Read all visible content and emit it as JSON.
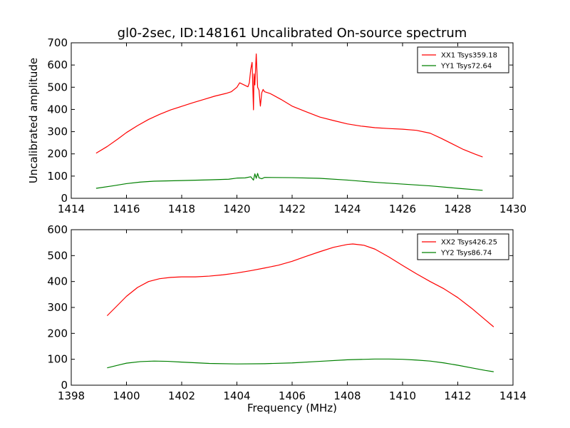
{
  "chart_data": [
    {
      "type": "line",
      "title": "gl0-2sec, ID:148161 Uncalibrated On-source spectrum",
      "xlabel": "",
      "ylabel": "Uncalibrated amplitude",
      "xlim": [
        1414,
        1430
      ],
      "ylim": [
        0,
        700
      ],
      "xticks": [
        1414,
        1416,
        1418,
        1420,
        1422,
        1424,
        1426,
        1428,
        1430
      ],
      "yticks": [
        0,
        100,
        200,
        300,
        400,
        500,
        600,
        700
      ],
      "legend_position": "top-right",
      "series": [
        {
          "name": "XX1 Tsys359.18",
          "color": "#ff0000",
          "x": [
            1414.9,
            1415.3,
            1415.7,
            1416.0,
            1416.4,
            1416.8,
            1417.2,
            1417.6,
            1418.0,
            1418.4,
            1418.8,
            1419.2,
            1419.6,
            1419.8,
            1420.0,
            1420.1,
            1420.3,
            1420.4,
            1420.45,
            1420.5,
            1420.55,
            1420.6,
            1420.62,
            1420.65,
            1420.7,
            1420.75,
            1420.8,
            1420.85,
            1420.9,
            1420.95,
            1421.0,
            1421.2,
            1421.6,
            1422.0,
            1422.5,
            1423.0,
            1423.5,
            1424.0,
            1424.5,
            1425.0,
            1425.5,
            1426.0,
            1426.5,
            1427.0,
            1427.4,
            1427.8,
            1428.2,
            1428.6,
            1428.9
          ],
          "values": [
            203,
            233,
            268,
            296,
            327,
            355,
            378,
            398,
            414,
            430,
            445,
            460,
            472,
            480,
            500,
            520,
            508,
            502,
            520,
            580,
            612,
            398,
            560,
            510,
            650,
            500,
            487,
            415,
            475,
            490,
            480,
            472,
            445,
            415,
            390,
            366,
            350,
            335,
            325,
            318,
            314,
            311,
            306,
            293,
            270,
            245,
            220,
            200,
            186
          ]
        },
        {
          "name": "YY1 Tsys72.64",
          "color": "#008000",
          "x": [
            1414.9,
            1415.5,
            1416.0,
            1416.5,
            1417.0,
            1418.0,
            1419.0,
            1419.7,
            1420.0,
            1420.3,
            1420.5,
            1420.6,
            1420.65,
            1420.7,
            1420.75,
            1420.8,
            1420.9,
            1421.0,
            1422.0,
            1423.0,
            1424.0,
            1425.0,
            1426.0,
            1427.0,
            1428.0,
            1428.9
          ],
          "values": [
            45,
            56,
            66,
            73,
            77,
            80,
            83,
            86,
            91,
            92,
            97,
            82,
            110,
            90,
            112,
            92,
            88,
            94,
            93,
            90,
            82,
            72,
            64,
            56,
            45,
            36
          ]
        }
      ]
    },
    {
      "type": "line",
      "title": "",
      "xlabel": "Frequency (MHz)",
      "ylabel": "",
      "xlim": [
        1398,
        1414
      ],
      "ylim": [
        0,
        600
      ],
      "xticks": [
        1398,
        1400,
        1402,
        1404,
        1406,
        1408,
        1410,
        1412,
        1414
      ],
      "yticks": [
        0,
        100,
        200,
        300,
        400,
        500,
        600
      ],
      "legend_position": "top-right",
      "series": [
        {
          "name": "XX2 Tsys426.25",
          "color": "#ff0000",
          "x": [
            1399.3,
            1399.6,
            1400.0,
            1400.4,
            1400.8,
            1401.2,
            1401.6,
            1402.0,
            1402.5,
            1403.0,
            1403.5,
            1404.0,
            1404.5,
            1405.0,
            1405.5,
            1406.0,
            1406.5,
            1407.0,
            1407.5,
            1408.0,
            1408.2,
            1408.6,
            1409.0,
            1409.5,
            1410.0,
            1410.5,
            1411.0,
            1411.5,
            1412.0,
            1412.5,
            1413.0,
            1413.3
          ],
          "values": [
            268,
            300,
            343,
            377,
            400,
            411,
            416,
            418,
            418,
            421,
            426,
            433,
            442,
            452,
            463,
            478,
            497,
            515,
            532,
            543,
            545,
            540,
            525,
            495,
            462,
            430,
            400,
            372,
            338,
            297,
            252,
            225
          ]
        },
        {
          "name": "YY2 Tsys86.74",
          "color": "#008000",
          "x": [
            1399.3,
            1399.8,
            1400.0,
            1400.5,
            1401.0,
            1401.5,
            1402.0,
            1403.0,
            1404.0,
            1405.0,
            1406.0,
            1407.0,
            1408.0,
            1409.0,
            1409.5,
            1410.0,
            1410.5,
            1411.0,
            1411.5,
            1412.0,
            1412.5,
            1413.0,
            1413.3
          ],
          "values": [
            67,
            80,
            85,
            91,
            93,
            92,
            89,
            84,
            82,
            83,
            86,
            92,
            98,
            101,
            101,
            100,
            97,
            93,
            86,
            77,
            67,
            57,
            52
          ]
        }
      ]
    }
  ]
}
